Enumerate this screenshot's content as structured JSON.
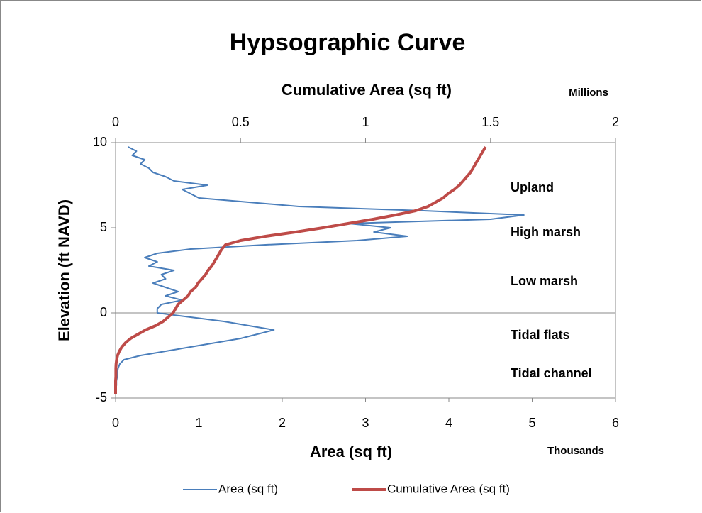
{
  "chart_data": {
    "type": "line",
    "title": "Hypsographic Curve",
    "x_label": "Area (sq ft)",
    "x_unit": "Thousands",
    "x2_label": "Cumulative Area (sq ft)",
    "x2_unit": "Millions",
    "y_label": "Elevation (ft NAVD)",
    "xlim": [
      0,
      6
    ],
    "xticks": [
      0,
      1,
      2,
      3,
      4,
      5,
      6
    ],
    "x2lim": [
      0,
      2
    ],
    "x2ticks": [
      0,
      0.5,
      1,
      1.5,
      2
    ],
    "ylim": [
      -5,
      10
    ],
    "yticks": [
      -5,
      0,
      5,
      10
    ],
    "legend": "bottom",
    "annotations": [
      "Upland",
      "High marsh",
      "Low marsh",
      "Tidal flats",
      "Tidal channel"
    ],
    "y": [
      -4.75,
      -4.5,
      -4.25,
      -4,
      -3.75,
      -3.5,
      -3.25,
      -3,
      -2.75,
      -2.5,
      -2.25,
      -2,
      -1.75,
      -1.5,
      -1.25,
      -1,
      -0.75,
      -0.5,
      -0.25,
      0,
      0.25,
      0.5,
      0.75,
      1,
      1.25,
      1.5,
      1.75,
      2,
      2.25,
      2.5,
      2.75,
      3,
      3.25,
      3.5,
      3.75,
      4,
      4.25,
      4.5,
      4.75,
      5,
      5.25,
      5.5,
      5.75,
      6,
      6.25,
      6.5,
      6.75,
      7,
      7.25,
      7.5,
      7.75,
      8,
      8.25,
      8.5,
      8.75,
      9,
      9.25,
      9.5,
      9.75
    ],
    "series": [
      {
        "name": "Area (sq ft)",
        "color": "#4a7ebb",
        "axis": "x",
        "values": [
          0,
          0,
          0.01,
          0.01,
          0.02,
          0.02,
          0.03,
          0.05,
          0.1,
          0.3,
          0.6,
          0.9,
          1.2,
          1.5,
          1.7,
          1.9,
          1.6,
          1.3,
          0.9,
          0.5,
          0.5,
          0.55,
          0.8,
          0.6,
          0.75,
          0.6,
          0.45,
          0.6,
          0.55,
          0.7,
          0.4,
          0.5,
          0.35,
          0.5,
          0.9,
          1.8,
          2.9,
          3.5,
          3.1,
          3.3,
          2.8,
          4.5,
          4.9,
          3.7,
          2.2,
          1.6,
          1.0,
          0.9,
          0.8,
          1.1,
          0.7,
          0.6,
          0.45,
          0.4,
          0.3,
          0.35,
          0.2,
          0.25,
          0.15
        ]
      },
      {
        "name": "Cumulative Area (sq ft)",
        "color": "#be4b48",
        "axis": "x2",
        "values": [
          0,
          0,
          0,
          0,
          0.001,
          0.001,
          0.001,
          0.002,
          0.004,
          0.008,
          0.015,
          0.025,
          0.04,
          0.06,
          0.09,
          0.12,
          0.16,
          0.19,
          0.21,
          0.23,
          0.24,
          0.25,
          0.27,
          0.29,
          0.3,
          0.32,
          0.33,
          0.345,
          0.36,
          0.37,
          0.385,
          0.395,
          0.405,
          0.415,
          0.425,
          0.44,
          0.5,
          0.6,
          0.72,
          0.83,
          0.93,
          1.03,
          1.12,
          1.2,
          1.25,
          1.28,
          1.31,
          1.33,
          1.355,
          1.375,
          1.39,
          1.405,
          1.42,
          1.43,
          1.44,
          1.45,
          1.46,
          1.47,
          1.48
        ]
      }
    ]
  }
}
